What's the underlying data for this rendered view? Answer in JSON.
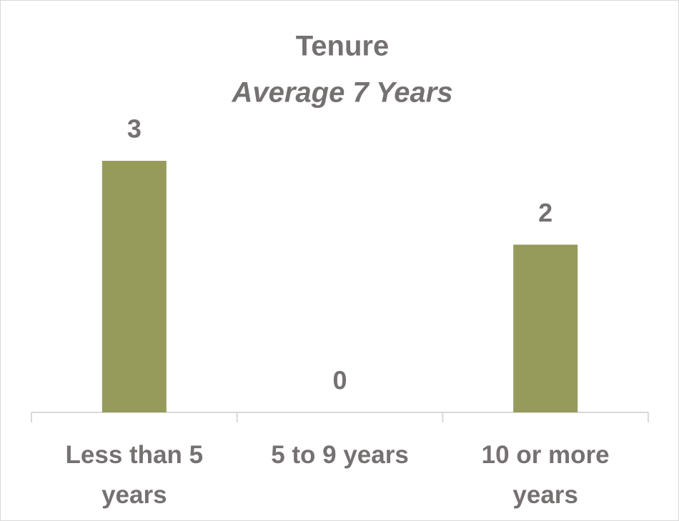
{
  "chart_data": {
    "type": "bar",
    "title": "Tenure",
    "subtitle": "Average 7 Years",
    "categories": [
      "Less than 5 years",
      "5 to 9 years",
      "10 or more years"
    ],
    "values": [
      3,
      0,
      2
    ],
    "color": "#969b5c"
  }
}
